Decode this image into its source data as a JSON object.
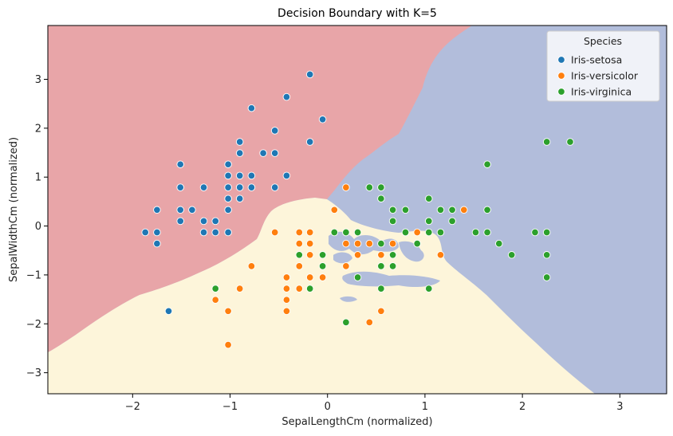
{
  "chart_data": {
    "type": "scatter",
    "title": "Decision Boundary with K=5",
    "xlabel": "SepalLengthCm (normalized)",
    "ylabel": "SepalWidthCm (normalized)",
    "xlim": [
      -2.87,
      3.48
    ],
    "ylim": [
      -3.43,
      4.1
    ],
    "xticks": [
      -2,
      -1,
      0,
      1,
      2,
      3
    ],
    "yticks": [
      -3,
      -2,
      -1,
      0,
      1,
      2,
      3
    ],
    "grid": false,
    "legend": {
      "title": "Species",
      "placement": "top-right"
    },
    "regions": [
      {
        "class": "Iris-setosa",
        "color": "#e8a5a8"
      },
      {
        "class": "Iris-versicolor",
        "color": "#fdf5da"
      },
      {
        "class": "Iris-virginica",
        "color": "#b2bddb"
      }
    ],
    "series": [
      {
        "name": "Iris-setosa",
        "color": "#1f77b4",
        "points": [
          [
            -1.87,
            -0.13
          ],
          [
            -1.75,
            0.33
          ],
          [
            -1.75,
            -0.13
          ],
          [
            -1.75,
            -0.36
          ],
          [
            -1.63,
            -1.74
          ],
          [
            -1.51,
            1.26
          ],
          [
            -1.51,
            0.79
          ],
          [
            -1.51,
            0.33
          ],
          [
            -1.51,
            0.1
          ],
          [
            -1.39,
            0.33
          ],
          [
            -1.27,
            0.79
          ],
          [
            -1.27,
            0.1
          ],
          [
            -1.27,
            -0.13
          ],
          [
            -1.15,
            0.1
          ],
          [
            -1.15,
            -0.13
          ],
          [
            -1.02,
            1.26
          ],
          [
            -1.02,
            1.03
          ],
          [
            -1.02,
            0.79
          ],
          [
            -1.02,
            0.56
          ],
          [
            -1.02,
            0.33
          ],
          [
            -1.02,
            -0.13
          ],
          [
            -0.9,
            1.72
          ],
          [
            -0.9,
            1.49
          ],
          [
            -0.9,
            1.03
          ],
          [
            -0.9,
            0.79
          ],
          [
            -0.9,
            0.56
          ],
          [
            -0.78,
            2.41
          ],
          [
            -0.78,
            1.03
          ],
          [
            -0.78,
            0.79
          ],
          [
            -0.66,
            1.49
          ],
          [
            -0.54,
            1.95
          ],
          [
            -0.54,
            1.49
          ],
          [
            -0.54,
            0.79
          ],
          [
            -0.42,
            2.64
          ],
          [
            -0.42,
            1.03
          ],
          [
            -0.18,
            3.1
          ],
          [
            -0.18,
            1.72
          ],
          [
            -0.05,
            2.18
          ]
        ]
      },
      {
        "name": "Iris-versicolor",
        "color": "#ff7f0e",
        "points": [
          [
            -1.15,
            -1.28
          ],
          [
            -1.15,
            -1.51
          ],
          [
            -1.02,
            -1.74
          ],
          [
            -1.02,
            -2.43
          ],
          [
            -0.9,
            -1.28
          ],
          [
            -0.78,
            -0.82
          ],
          [
            -0.54,
            -0.13
          ],
          [
            -0.42,
            -1.05
          ],
          [
            -0.42,
            -1.28
          ],
          [
            -0.42,
            -1.51
          ],
          [
            -0.42,
            -1.74
          ],
          [
            -0.29,
            -0.13
          ],
          [
            -0.29,
            -0.36
          ],
          [
            -0.29,
            -0.82
          ],
          [
            -0.29,
            -1.28
          ],
          [
            -0.18,
            -0.13
          ],
          [
            -0.18,
            -0.36
          ],
          [
            -0.18,
            -0.59
          ],
          [
            -0.18,
            -1.05
          ],
          [
            -0.05,
            -1.05
          ],
          [
            -0.05,
            -0.59
          ],
          [
            0.07,
            0.33
          ],
          [
            0.19,
            0.79
          ],
          [
            0.19,
            -0.13
          ],
          [
            0.19,
            -0.36
          ],
          [
            0.19,
            -0.82
          ],
          [
            0.31,
            -0.36
          ],
          [
            0.31,
            -0.59
          ],
          [
            0.43,
            -0.36
          ],
          [
            0.43,
            -1.97
          ],
          [
            0.55,
            -0.59
          ],
          [
            0.55,
            -1.74
          ],
          [
            0.67,
            -0.36
          ],
          [
            0.8,
            -0.13
          ],
          [
            0.92,
            -0.13
          ],
          [
            0.92,
            -0.36
          ],
          [
            1.04,
            0.1
          ],
          [
            1.16,
            -0.59
          ],
          [
            1.4,
            0.33
          ]
        ]
      },
      {
        "name": "Iris-virginica",
        "color": "#2ca02c",
        "points": [
          [
            -1.15,
            -1.28
          ],
          [
            -0.29,
            -0.59
          ],
          [
            -0.18,
            -1.28
          ],
          [
            -0.05,
            -0.59
          ],
          [
            -0.05,
            -0.82
          ],
          [
            0.07,
            -0.13
          ],
          [
            0.19,
            -0.13
          ],
          [
            0.19,
            -1.97
          ],
          [
            0.31,
            -0.13
          ],
          [
            0.31,
            -1.05
          ],
          [
            0.43,
            0.79
          ],
          [
            0.55,
            0.79
          ],
          [
            0.55,
            0.56
          ],
          [
            0.55,
            -0.36
          ],
          [
            0.55,
            -0.82
          ],
          [
            0.55,
            -1.28
          ],
          [
            0.67,
            0.33
          ],
          [
            0.67,
            0.1
          ],
          [
            0.67,
            -0.59
          ],
          [
            0.67,
            -0.82
          ],
          [
            0.8,
            0.33
          ],
          [
            0.8,
            -0.13
          ],
          [
            0.92,
            -0.36
          ],
          [
            1.04,
            0.56
          ],
          [
            1.04,
            0.1
          ],
          [
            1.04,
            -0.13
          ],
          [
            1.04,
            -1.28
          ],
          [
            1.16,
            0.33
          ],
          [
            1.16,
            -0.13
          ],
          [
            1.28,
            0.33
          ],
          [
            1.28,
            0.1
          ],
          [
            1.52,
            -0.13
          ],
          [
            1.64,
            1.26
          ],
          [
            1.64,
            0.33
          ],
          [
            1.64,
            -0.13
          ],
          [
            1.76,
            -0.36
          ],
          [
            1.89,
            -0.59
          ],
          [
            2.13,
            -0.13
          ],
          [
            2.25,
            1.72
          ],
          [
            2.25,
            -0.13
          ],
          [
            2.25,
            -0.59
          ],
          [
            2.25,
            -1.05
          ],
          [
            2.49,
            1.72
          ]
        ]
      }
    ]
  }
}
